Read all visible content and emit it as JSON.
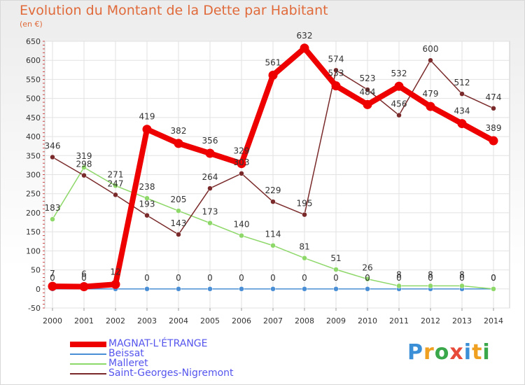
{
  "header": {
    "title": "Evolution du Montant de la Dette par Habitant",
    "subtitle": "(en €)"
  },
  "logo": {
    "text": "Proxiti",
    "colors": [
      "#3a8fd6",
      "#f0a020",
      "#3aa84a",
      "#e84a3a",
      "#3a8fd6",
      "#f0a020",
      "#3aa84a"
    ]
  },
  "chart_data": {
    "type": "line",
    "title": "Evolution du Montant de la Dette par Habitant",
    "subtitle": "(en €)",
    "xlabel": "",
    "ylabel": "",
    "x": [
      2000,
      2001,
      2002,
      2003,
      2004,
      2005,
      2006,
      2007,
      2008,
      2009,
      2010,
      2011,
      2012,
      2013,
      2014
    ],
    "ylim": [
      -50,
      650
    ],
    "yticks": [
      -50,
      0,
      50,
      100,
      150,
      200,
      250,
      300,
      350,
      400,
      450,
      500,
      550,
      600,
      650
    ],
    "grid": true,
    "legend": "bottom-left",
    "series": [
      {
        "name": "MAGNAT-L'ÉTRANGE",
        "color": "#ee0000",
        "values": [
          7,
          6,
          12,
          419,
          382,
          356,
          329,
          561,
          632,
          533,
          484,
          532,
          479,
          434,
          389
        ],
        "labels": [
          "7",
          "6",
          "12",
          "419",
          "382",
          "356",
          "329",
          "561",
          "632",
          "533",
          "484",
          "532",
          "479",
          "434",
          "389"
        ]
      },
      {
        "name": "Beissat",
        "color": "#4a8fd6",
        "values": [
          0,
          0,
          0,
          0,
          0,
          0,
          0,
          0,
          0,
          0,
          0,
          0,
          0,
          0,
          0
        ],
        "labels": [
          "0",
          "0",
          "",
          "0",
          "0",
          "0",
          "0",
          "0",
          "0",
          "0",
          "0",
          "0",
          "0",
          "0",
          "0"
        ]
      },
      {
        "name": "Malleret",
        "color": "#8ed86a",
        "values": [
          183,
          319,
          271,
          238,
          205,
          173,
          140,
          114,
          81,
          51,
          26,
          8,
          8,
          8,
          0
        ],
        "labels": [
          "183",
          "319",
          "271",
          "238",
          "205",
          "173",
          "140",
          "114",
          "81",
          "51",
          "26",
          "8",
          "8",
          "8",
          "0"
        ]
      },
      {
        "name": "Saint-Georges-Nigremont",
        "color": "#7a2a2a",
        "values": [
          346,
          298,
          247,
          193,
          143,
          264,
          303,
          229,
          195,
          574,
          523,
          456,
          600,
          512,
          474
        ],
        "labels": [
          "346",
          "298",
          "247",
          "193",
          "143",
          "264",
          "303",
          "229",
          "195",
          "574",
          "523",
          "456",
          "600",
          "512",
          "474"
        ]
      }
    ]
  }
}
